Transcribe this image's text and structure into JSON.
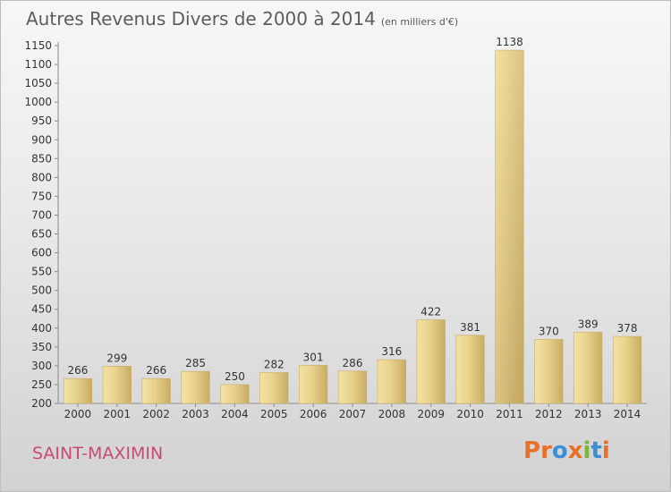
{
  "chart_data": {
    "type": "bar",
    "title": "Autres Revenus Divers de 2000 à 2014",
    "unit_label": "(en milliers d'€)",
    "categories": [
      "2000",
      "2001",
      "2002",
      "2003",
      "2004",
      "2005",
      "2006",
      "2007",
      "2008",
      "2009",
      "2010",
      "2011",
      "2012",
      "2013",
      "2014"
    ],
    "values": [
      266,
      299,
      266,
      285,
      250,
      282,
      301,
      286,
      316,
      422,
      381,
      1138,
      370,
      389,
      378
    ],
    "data_labels": [
      "266",
      "299",
      "266",
      "285",
      "250",
      "282",
      "301",
      "286",
      "316",
      "422",
      "381",
      "1138",
      "370",
      "389",
      "378"
    ],
    "ylim": [
      200,
      1150
    ],
    "yticks": [
      200,
      250,
      300,
      350,
      400,
      450,
      500,
      550,
      600,
      650,
      700,
      750,
      800,
      850,
      900,
      950,
      1000,
      1050,
      1100,
      1150
    ],
    "xlabel": "",
    "ylabel": "",
    "grid": false,
    "bar_color": "#dcc27e"
  },
  "footer": {
    "town": "SAINT-MAXIMIN",
    "brand": "Proxiti"
  },
  "colors": {
    "title": "#5d5d5d",
    "town": "#c94b73",
    "brand_letters": [
      "#e8702a",
      "#e8702a",
      "#3b8fd4",
      "#e8702a",
      "#7cb83a",
      "#3b8fd4",
      "#e8702a"
    ]
  }
}
